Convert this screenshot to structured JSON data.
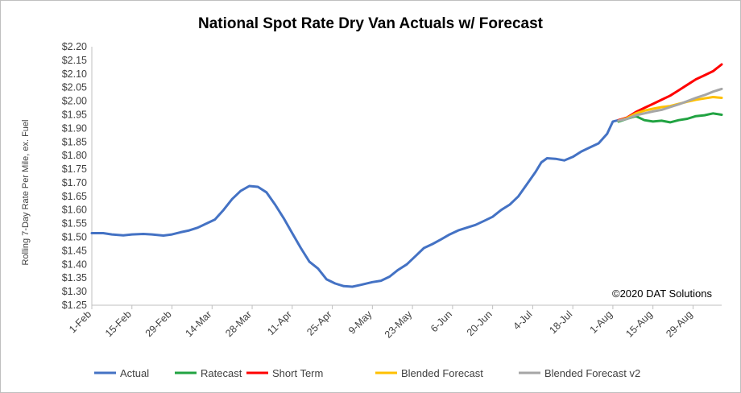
{
  "chart_data": {
    "type": "line",
    "title": "National Spot Rate Dry Van Actuals w/ Forecast",
    "xlabel": "",
    "ylabel": "Rolling 7-Day Rate Per Mile, ex. Fuel",
    "annotation": "©2020 DAT Solutions",
    "ylim": [
      1.25,
      2.2
    ],
    "y_ticks": [
      "$1.25",
      "$1.30",
      "$1.35",
      "$1.40",
      "$1.45",
      "$1.50",
      "$1.55",
      "$1.60",
      "$1.65",
      "$1.70",
      "$1.75",
      "$1.80",
      "$1.85",
      "$1.90",
      "$1.95",
      "$2.00",
      "$2.05",
      "$2.10",
      "$2.15",
      "$2.20"
    ],
    "x_ticks": [
      "1-Feb",
      "15-Feb",
      "29-Feb",
      "14-Mar",
      "28-Mar",
      "11-Apr",
      "25-Apr",
      "9-May",
      "23-May",
      "6-Jun",
      "20-Jun",
      "4-Jul",
      "18-Jul",
      "1-Aug",
      "15-Aug",
      "29-Aug"
    ],
    "xlim": [
      "2020-02-01",
      "2020-09-08"
    ],
    "grid": false,
    "legend_position": "bottom",
    "series": [
      {
        "name": "Actual",
        "color": "#4472c4",
        "points": [
          [
            "2020-02-01",
            1.515
          ],
          [
            "2020-02-05",
            1.515
          ],
          [
            "2020-02-08",
            1.51
          ],
          [
            "2020-02-12",
            1.507
          ],
          [
            "2020-02-15",
            1.51
          ],
          [
            "2020-02-19",
            1.512
          ],
          [
            "2020-02-22",
            1.51
          ],
          [
            "2020-02-26",
            1.506
          ],
          [
            "2020-02-29",
            1.51
          ],
          [
            "2020-03-03",
            1.518
          ],
          [
            "2020-03-06",
            1.525
          ],
          [
            "2020-03-09",
            1.535
          ],
          [
            "2020-03-12",
            1.55
          ],
          [
            "2020-03-15",
            1.565
          ],
          [
            "2020-03-18",
            1.6
          ],
          [
            "2020-03-21",
            1.64
          ],
          [
            "2020-03-24",
            1.67
          ],
          [
            "2020-03-27",
            1.688
          ],
          [
            "2020-03-30",
            1.685
          ],
          [
            "2020-04-02",
            1.665
          ],
          [
            "2020-04-05",
            1.62
          ],
          [
            "2020-04-08",
            1.57
          ],
          [
            "2020-04-11",
            1.515
          ],
          [
            "2020-04-14",
            1.46
          ],
          [
            "2020-04-17",
            1.41
          ],
          [
            "2020-04-20",
            1.385
          ],
          [
            "2020-04-23",
            1.345
          ],
          [
            "2020-04-26",
            1.33
          ],
          [
            "2020-04-29",
            1.32
          ],
          [
            "2020-05-02",
            1.318
          ],
          [
            "2020-05-05",
            1.325
          ],
          [
            "2020-05-09",
            1.335
          ],
          [
            "2020-05-12",
            1.34
          ],
          [
            "2020-05-15",
            1.355
          ],
          [
            "2020-05-18",
            1.38
          ],
          [
            "2020-05-21",
            1.4
          ],
          [
            "2020-05-24",
            1.43
          ],
          [
            "2020-05-27",
            1.46
          ],
          [
            "2020-05-30",
            1.475
          ],
          [
            "2020-06-02",
            1.492
          ],
          [
            "2020-06-05",
            1.51
          ],
          [
            "2020-06-08",
            1.525
          ],
          [
            "2020-06-11",
            1.535
          ],
          [
            "2020-06-14",
            1.545
          ],
          [
            "2020-06-17",
            1.56
          ],
          [
            "2020-06-20",
            1.575
          ],
          [
            "2020-06-23",
            1.6
          ],
          [
            "2020-06-26",
            1.62
          ],
          [
            "2020-06-29",
            1.65
          ],
          [
            "2020-07-02",
            1.695
          ],
          [
            "2020-07-05",
            1.74
          ],
          [
            "2020-07-07",
            1.775
          ],
          [
            "2020-07-09",
            1.79
          ],
          [
            "2020-07-12",
            1.788
          ],
          [
            "2020-07-15",
            1.782
          ],
          [
            "2020-07-18",
            1.795
          ],
          [
            "2020-07-21",
            1.815
          ],
          [
            "2020-07-24",
            1.83
          ],
          [
            "2020-07-27",
            1.845
          ],
          [
            "2020-07-30",
            1.88
          ],
          [
            "2020-08-01",
            1.925
          ],
          [
            "2020-08-03",
            1.93
          ]
        ]
      },
      {
        "name": "Ratecast",
        "color": "#21a342",
        "points": [
          [
            "2020-08-03",
            1.925
          ],
          [
            "2020-08-06",
            1.935
          ],
          [
            "2020-08-09",
            1.945
          ],
          [
            "2020-08-12",
            1.93
          ],
          [
            "2020-08-15",
            1.925
          ],
          [
            "2020-08-18",
            1.928
          ],
          [
            "2020-08-21",
            1.922
          ],
          [
            "2020-08-24",
            1.93
          ],
          [
            "2020-08-27",
            1.935
          ],
          [
            "2020-08-30",
            1.945
          ],
          [
            "2020-09-02",
            1.948
          ],
          [
            "2020-09-05",
            1.955
          ],
          [
            "2020-09-08",
            1.95
          ]
        ]
      },
      {
        "name": "Short Term",
        "color": "#ff0000",
        "points": [
          [
            "2020-08-03",
            1.93
          ],
          [
            "2020-08-06",
            1.94
          ],
          [
            "2020-08-09",
            1.96
          ],
          [
            "2020-08-12",
            1.975
          ],
          [
            "2020-08-15",
            1.99
          ],
          [
            "2020-08-18",
            2.005
          ],
          [
            "2020-08-21",
            2.02
          ],
          [
            "2020-08-24",
            2.04
          ],
          [
            "2020-08-27",
            2.06
          ],
          [
            "2020-08-30",
            2.08
          ],
          [
            "2020-09-02",
            2.095
          ],
          [
            "2020-09-05",
            2.11
          ],
          [
            "2020-09-08",
            2.135
          ]
        ]
      },
      {
        "name": "Blended Forecast",
        "color": "#ffc000",
        "points": [
          [
            "2020-08-03",
            1.928
          ],
          [
            "2020-08-06",
            1.938
          ],
          [
            "2020-08-09",
            1.955
          ],
          [
            "2020-08-12",
            1.965
          ],
          [
            "2020-08-15",
            1.972
          ],
          [
            "2020-08-18",
            1.978
          ],
          [
            "2020-08-21",
            1.982
          ],
          [
            "2020-08-24",
            1.99
          ],
          [
            "2020-08-27",
            1.998
          ],
          [
            "2020-08-30",
            2.005
          ],
          [
            "2020-09-02",
            2.01
          ],
          [
            "2020-09-05",
            2.015
          ],
          [
            "2020-09-08",
            2.012
          ]
        ]
      },
      {
        "name": "Blended Forecast v2",
        "color": "#a6a6a6",
        "points": [
          [
            "2020-08-03",
            1.928
          ],
          [
            "2020-08-06",
            1.935
          ],
          [
            "2020-08-09",
            1.948
          ],
          [
            "2020-08-12",
            1.955
          ],
          [
            "2020-08-15",
            1.962
          ],
          [
            "2020-08-18",
            1.968
          ],
          [
            "2020-08-21",
            1.978
          ],
          [
            "2020-08-24",
            1.988
          ],
          [
            "2020-08-27",
            2.0
          ],
          [
            "2020-08-30",
            2.012
          ],
          [
            "2020-09-02",
            2.022
          ],
          [
            "2020-09-05",
            2.035
          ],
          [
            "2020-09-08",
            2.045
          ]
        ]
      }
    ]
  }
}
